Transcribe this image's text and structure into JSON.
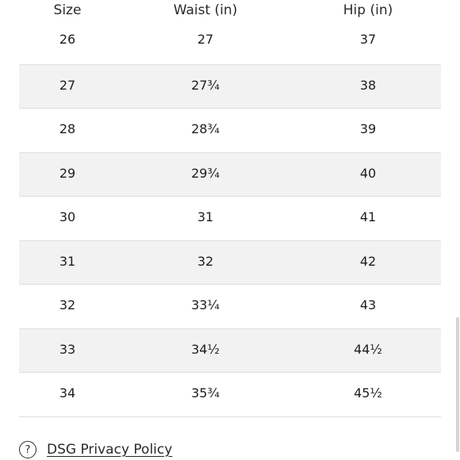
{
  "table": {
    "headers": {
      "size": "Size",
      "waist": "Waist (in)",
      "hip": "Hip (in)"
    },
    "rows": [
      {
        "size": "26",
        "waist": "27",
        "hip": "37"
      },
      {
        "size": "27",
        "waist": "27¾",
        "hip": "38"
      },
      {
        "size": "28",
        "waist": "28¾",
        "hip": "39"
      },
      {
        "size": "29",
        "waist": "29¾",
        "hip": "40"
      },
      {
        "size": "30",
        "waist": "31",
        "hip": "41"
      },
      {
        "size": "31",
        "waist": "32",
        "hip": "42"
      },
      {
        "size": "32",
        "waist": "33¼",
        "hip": "43"
      },
      {
        "size": "33",
        "waist": "34½",
        "hip": "44½"
      },
      {
        "size": "34",
        "waist": "35¾",
        "hip": "45½"
      }
    ]
  },
  "footer": {
    "help_icon": "?",
    "privacy_link": "DSG Privacy Policy"
  },
  "colors": {
    "row_alt_background": "#f2f2f2",
    "row_divider": "#dedede",
    "text": "#1e1e1e"
  }
}
